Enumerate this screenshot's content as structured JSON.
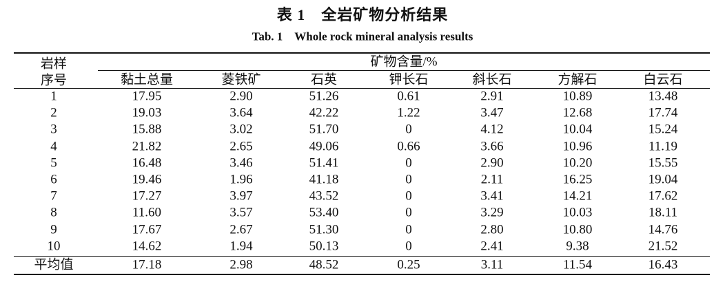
{
  "title": "表 1　全岩矿物分析结果",
  "subtitle": "Tab. 1　Whole rock mineral analysis results",
  "table": {
    "row_header": [
      "岩样",
      "序号"
    ],
    "group_header": "矿物含量/%",
    "columns": [
      "黏土总量",
      "菱铁矿",
      "石英",
      "钾长石",
      "斜长石",
      "方解石",
      "白云石"
    ],
    "rows": [
      [
        "1",
        "17.95",
        "2.90",
        "51.26",
        "0.61",
        "2.91",
        "10.89",
        "13.48"
      ],
      [
        "2",
        "19.03",
        "3.64",
        "42.22",
        "1.22",
        "3.47",
        "12.68",
        "17.74"
      ],
      [
        "3",
        "15.88",
        "3.02",
        "51.70",
        "0",
        "4.12",
        "10.04",
        "15.24"
      ],
      [
        "4",
        "21.82",
        "2.65",
        "49.06",
        "0.66",
        "3.66",
        "10.96",
        "11.19"
      ],
      [
        "5",
        "16.48",
        "3.46",
        "51.41",
        "0",
        "2.90",
        "10.20",
        "15.55"
      ],
      [
        "6",
        "19.46",
        "1.96",
        "41.18",
        "0",
        "2.11",
        "16.25",
        "19.04"
      ],
      [
        "7",
        "17.27",
        "3.97",
        "43.52",
        "0",
        "3.41",
        "14.21",
        "17.62"
      ],
      [
        "8",
        "11.60",
        "3.57",
        "53.40",
        "0",
        "3.29",
        "10.03",
        "18.11"
      ],
      [
        "9",
        "17.67",
        "2.67",
        "51.30",
        "0",
        "2.80",
        "10.80",
        "14.76"
      ],
      [
        "10",
        "14.62",
        "1.94",
        "50.13",
        "0",
        "2.41",
        "9.38",
        "21.52"
      ]
    ],
    "average_row": [
      "平均值",
      "17.18",
      "2.98",
      "48.52",
      "0.25",
      "3.11",
      "11.54",
      "16.43"
    ]
  }
}
